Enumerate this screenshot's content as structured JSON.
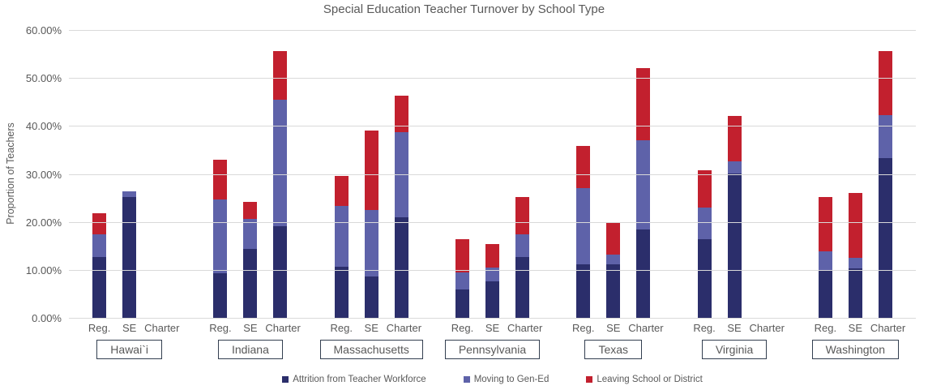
{
  "chart_data": {
    "type": "bar",
    "stacked": true,
    "title": "Special Education Teacher Turnover by School Type",
    "ylabel": "Proportion of Teachers",
    "ylim": [
      0,
      60
    ],
    "ytick_step": 10,
    "ytick_labels": [
      "0.00%",
      "10.00%",
      "20.00%",
      "30.00%",
      "40.00%",
      "50.00%",
      "60.00%"
    ],
    "grid": true,
    "legend_position": "bottom",
    "bar_labels": [
      "Reg.",
      "SE",
      "Charter"
    ],
    "series": [
      {
        "name": "Attrition from Teacher Workforce",
        "color": "#2B2E6B"
      },
      {
        "name": "Moving to Gen-Ed",
        "color": "#5E62A9"
      },
      {
        "name": "Leaving School or District",
        "color": "#C2202E"
      }
    ],
    "groups": [
      {
        "state": "Hawai`i",
        "values": [
          [
            12.8,
            4.7,
            4.5
          ],
          [
            25.3,
            1.2,
            0.0
          ],
          null
        ]
      },
      {
        "state": "Indiana",
        "values": [
          [
            9.5,
            15.4,
            8.2
          ],
          [
            14.6,
            6.2,
            3.5
          ],
          [
            19.3,
            26.4,
            10.0
          ]
        ]
      },
      {
        "state": "Massachusetts",
        "values": [
          [
            10.8,
            12.7,
            6.3
          ],
          [
            8.8,
            13.9,
            16.5
          ],
          [
            21.1,
            17.8,
            7.6
          ]
        ]
      },
      {
        "state": "Pennsylvania",
        "values": [
          [
            6.1,
            3.5,
            7.0
          ],
          [
            7.7,
            3.0,
            4.8
          ],
          [
            12.8,
            4.7,
            7.9
          ]
        ]
      },
      {
        "state": "Texas",
        "values": [
          [
            11.3,
            16.0,
            8.7
          ],
          [
            11.3,
            2.0,
            6.7
          ],
          [
            18.6,
            18.6,
            15.0
          ]
        ]
      },
      {
        "state": "Virginia",
        "values": [
          [
            16.5,
            6.7,
            7.8
          ],
          [
            30.2,
            2.6,
            9.4
          ],
          null
        ]
      },
      {
        "state": "Washington",
        "values": [
          [
            10.2,
            3.9,
            11.2
          ],
          [
            10.5,
            2.2,
            13.5
          ],
          [
            33.5,
            8.9,
            13.3
          ]
        ]
      }
    ]
  }
}
